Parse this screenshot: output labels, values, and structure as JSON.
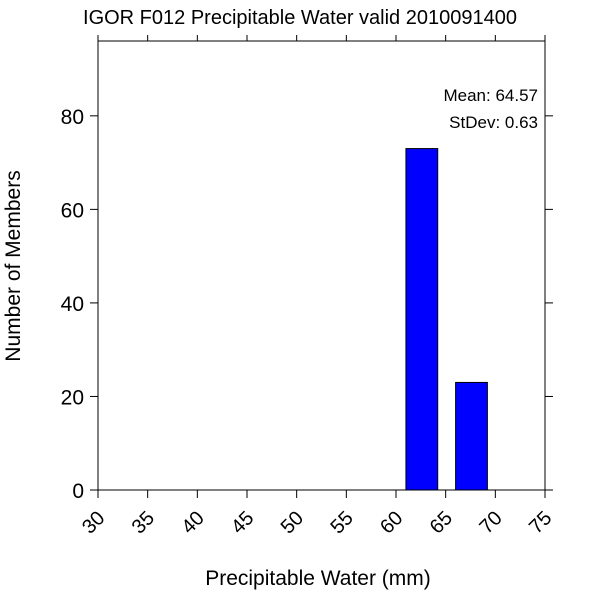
{
  "chart_data": {
    "type": "bar",
    "title": "IGOR F012 Precipitable Water valid 2010091400",
    "xlabel": "Precipitable Water (mm)",
    "ylabel": "Number of Members",
    "xlim": [
      30,
      75
    ],
    "ylim": [
      0,
      96
    ],
    "x_ticks": [
      30,
      35,
      40,
      45,
      50,
      55,
      60,
      65,
      70,
      75
    ],
    "y_ticks": [
      0,
      20,
      40,
      60,
      80
    ],
    "bars": [
      {
        "x_start": 61,
        "x_end": 64.2,
        "value": 73
      },
      {
        "x_start": 66,
        "x_end": 69.2,
        "value": 23
      }
    ],
    "bar_color": "#0000ff",
    "stats": {
      "mean_label": "Mean: 64.57",
      "stdev_label": "StDev: 0.63"
    },
    "grid": false
  }
}
